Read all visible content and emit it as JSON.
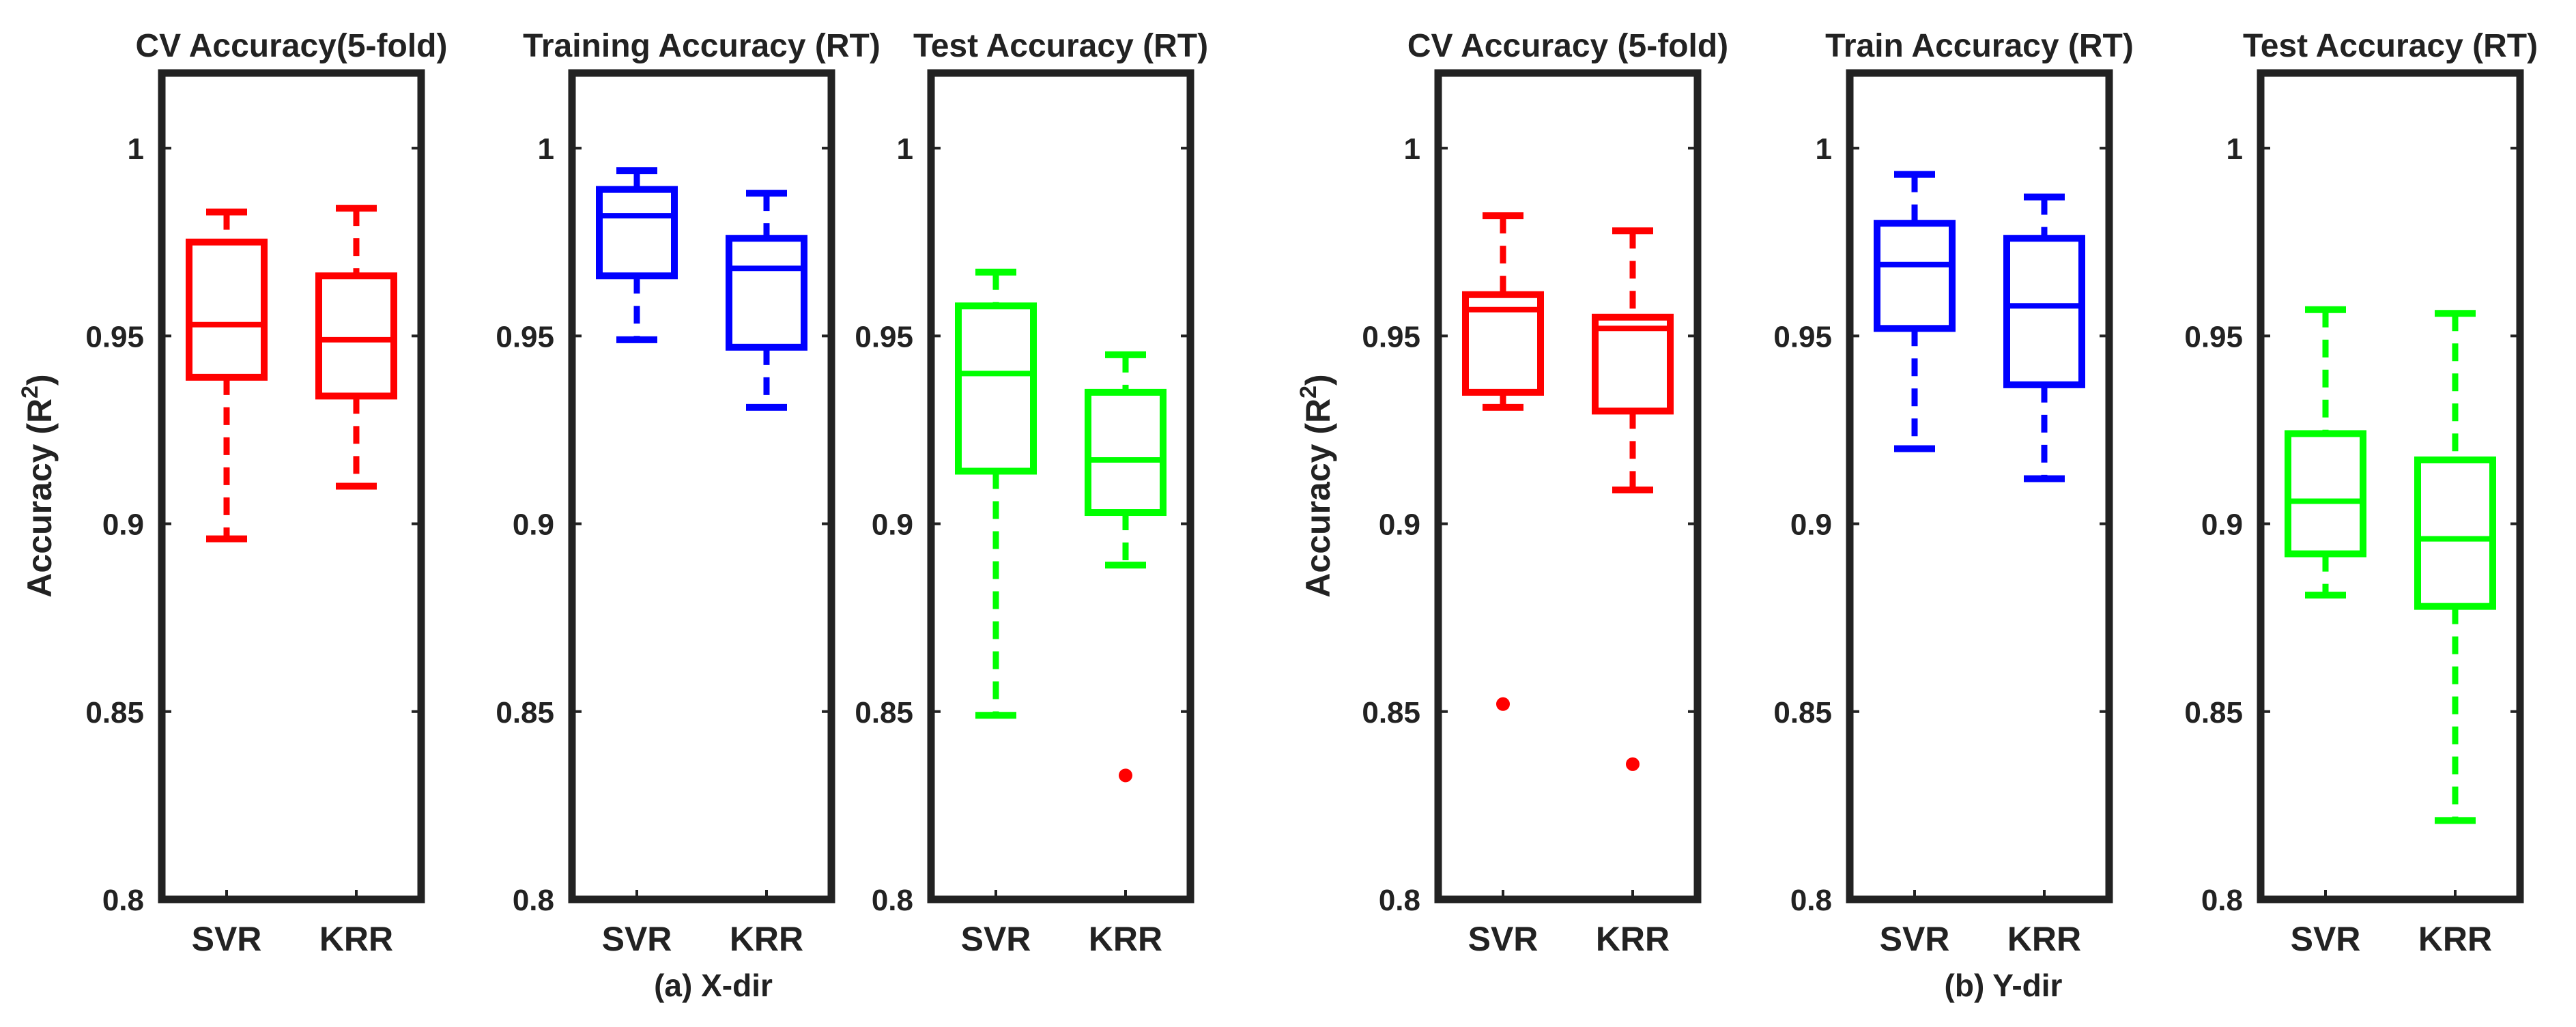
{
  "figure": {
    "groups": [
      {
        "caption": "(a) X-dir",
        "ylabel": "Accuracy (R",
        "ylabel_sup": "2",
        "ylabel_end": ")"
      },
      {
        "caption": "(b) Y-dir",
        "ylabel": "Accuracy (R",
        "ylabel_sup": "2",
        "ylabel_end": ")"
      }
    ]
  },
  "chart_data": [
    {
      "type": "box",
      "group": 0,
      "title": "CV Accuracy(5-fold)",
      "color": "#ff0000",
      "categories": [
        "SVR",
        "KRR"
      ],
      "ylim": [
        0.8,
        1.02
      ],
      "yticks": [
        0.8,
        0.85,
        0.9,
        0.95,
        1
      ],
      "yticklabels": [
        "0.8",
        "0.85",
        "0.9",
        "0.95",
        "1"
      ],
      "boxes": [
        {
          "name": "SVR",
          "lower_whisker": 0.896,
          "q1": 0.939,
          "median": 0.953,
          "q3": 0.975,
          "upper_whisker": 0.983,
          "outliers": []
        },
        {
          "name": "KRR",
          "lower_whisker": 0.91,
          "q1": 0.934,
          "median": 0.949,
          "q3": 0.966,
          "upper_whisker": 0.984,
          "outliers": []
        }
      ]
    },
    {
      "type": "box",
      "group": 0,
      "title": "Training Accuracy (RT)",
      "color": "#0000ff",
      "categories": [
        "SVR",
        "KRR"
      ],
      "ylim": [
        0.8,
        1.02
      ],
      "yticks": [
        0.8,
        0.85,
        0.9,
        0.95,
        1
      ],
      "yticklabels": [
        "0.8",
        "0.85",
        "0.9",
        "0.95",
        "1"
      ],
      "boxes": [
        {
          "name": "SVR",
          "lower_whisker": 0.949,
          "q1": 0.966,
          "median": 0.982,
          "q3": 0.989,
          "upper_whisker": 0.994,
          "outliers": []
        },
        {
          "name": "KRR",
          "lower_whisker": 0.931,
          "q1": 0.947,
          "median": 0.968,
          "q3": 0.976,
          "upper_whisker": 0.988,
          "outliers": []
        }
      ]
    },
    {
      "type": "box",
      "group": 0,
      "title": "Test Accuracy (RT)",
      "color": "#00ff00",
      "categories": [
        "SVR",
        "KRR"
      ],
      "ylim": [
        0.8,
        1.02
      ],
      "yticks": [
        0.8,
        0.85,
        0.9,
        0.95,
        1
      ],
      "yticklabels": [
        "0.8",
        "0.85",
        "0.9",
        "0.95",
        "1"
      ],
      "boxes": [
        {
          "name": "SVR",
          "lower_whisker": 0.849,
          "q1": 0.914,
          "median": 0.94,
          "q3": 0.958,
          "upper_whisker": 0.967,
          "outliers": []
        },
        {
          "name": "KRR",
          "lower_whisker": 0.889,
          "q1": 0.903,
          "median": 0.917,
          "q3": 0.935,
          "upper_whisker": 0.945,
          "outliers": [
            0.833
          ]
        }
      ]
    },
    {
      "type": "box",
      "group": 1,
      "title": "CV Accuracy (5-fold)",
      "color": "#ff0000",
      "categories": [
        "SVR",
        "KRR"
      ],
      "ylim": [
        0.8,
        1.02
      ],
      "yticks": [
        0.8,
        0.85,
        0.9,
        0.95,
        1
      ],
      "yticklabels": [
        "0.8",
        "0.85",
        "0.9",
        "0.95",
        "1"
      ],
      "boxes": [
        {
          "name": "SVR",
          "lower_whisker": 0.931,
          "q1": 0.935,
          "median": 0.957,
          "q3": 0.961,
          "upper_whisker": 0.982,
          "outliers": [
            0.852
          ]
        },
        {
          "name": "KRR",
          "lower_whisker": 0.909,
          "q1": 0.93,
          "median": 0.952,
          "q3": 0.955,
          "upper_whisker": 0.978,
          "outliers": [
            0.836
          ]
        }
      ]
    },
    {
      "type": "box",
      "group": 1,
      "title": "Train Accuracy (RT)",
      "color": "#0000ff",
      "categories": [
        "SVR",
        "KRR"
      ],
      "ylim": [
        0.8,
        1.02
      ],
      "yticks": [
        0.8,
        0.85,
        0.9,
        0.95,
        1
      ],
      "yticklabels": [
        "0.8",
        "0.85",
        "0.9",
        "0.95",
        "1"
      ],
      "boxes": [
        {
          "name": "SVR",
          "lower_whisker": 0.92,
          "q1": 0.952,
          "median": 0.969,
          "q3": 0.98,
          "upper_whisker": 0.993,
          "outliers": []
        },
        {
          "name": "KRR",
          "lower_whisker": 0.912,
          "q1": 0.937,
          "median": 0.958,
          "q3": 0.976,
          "upper_whisker": 0.987,
          "outliers": []
        }
      ]
    },
    {
      "type": "box",
      "group": 1,
      "title": "Test Accuracy (RT)",
      "color": "#00ff00",
      "categories": [
        "SVR",
        "KRR"
      ],
      "ylim": [
        0.8,
        1.02
      ],
      "yticks": [
        0.8,
        0.85,
        0.9,
        0.95,
        1
      ],
      "yticklabels": [
        "0.8",
        "0.85",
        "0.9",
        "0.95",
        "1"
      ],
      "boxes": [
        {
          "name": "SVR",
          "lower_whisker": 0.881,
          "q1": 0.892,
          "median": 0.906,
          "q3": 0.924,
          "upper_whisker": 0.957,
          "outliers": []
        },
        {
          "name": "KRR",
          "lower_whisker": 0.821,
          "q1": 0.878,
          "median": 0.896,
          "q3": 0.917,
          "upper_whisker": 0.956,
          "outliers": []
        }
      ]
    }
  ]
}
